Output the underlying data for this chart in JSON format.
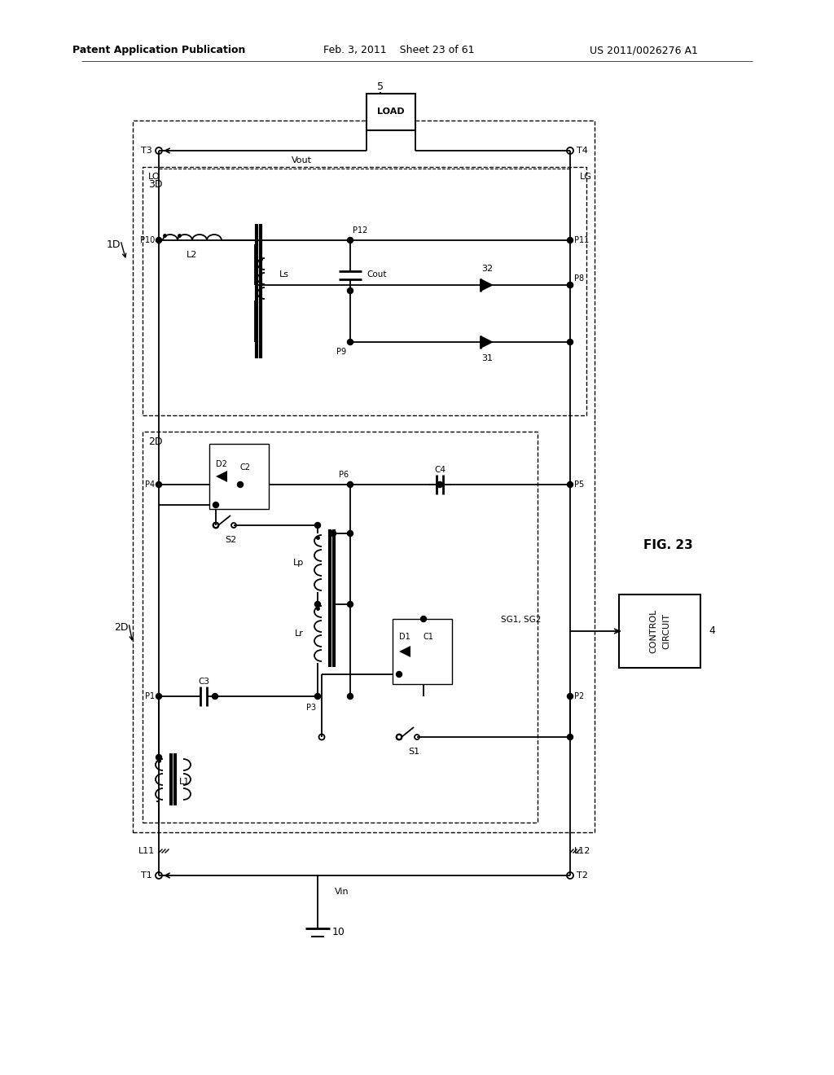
{
  "header_left": "Patent Application Publication",
  "header_center": "Feb. 3, 2011    Sheet 23 of 61",
  "header_right": "US 2011/0026276 A1",
  "fig_label": "FIG. 23",
  "bg_color": "#ffffff"
}
